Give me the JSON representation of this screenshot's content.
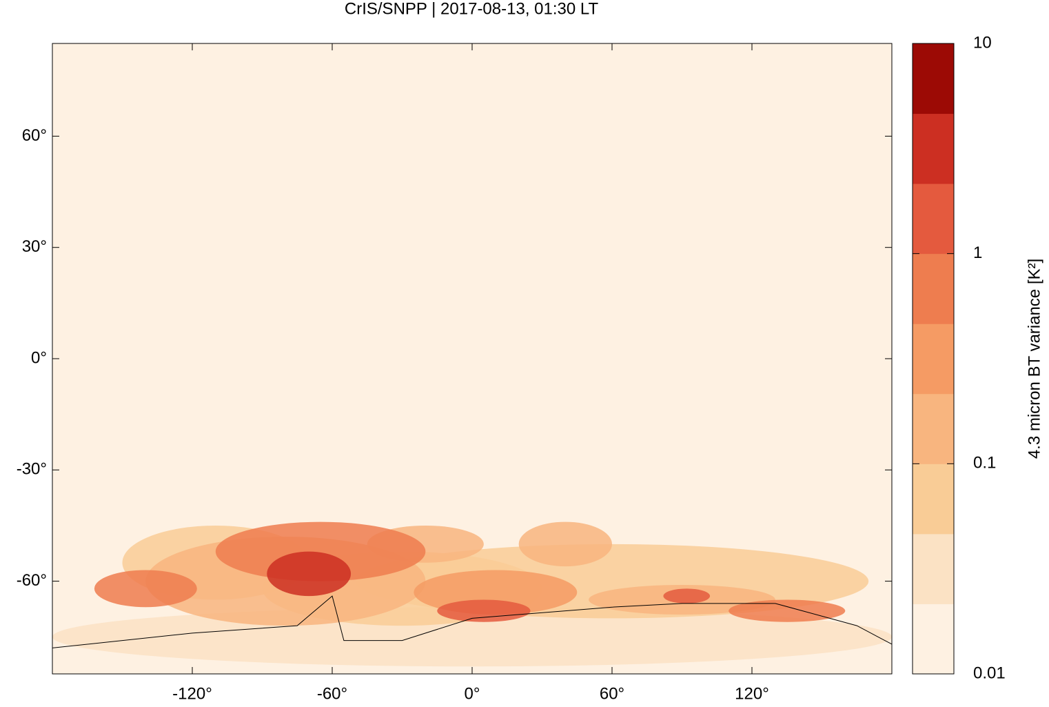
{
  "chart_data": {
    "type": "heatmap-map",
    "title": "CrIS/SNPP | 2017-08-13, 01:30 LT",
    "xlim": [
      -180,
      180
    ],
    "ylim": [
      -85,
      85
    ],
    "xticks": [
      {
        "value": -120,
        "label": "-120°"
      },
      {
        "value": -60,
        "label": "-60°"
      },
      {
        "value": 0,
        "label": "0°"
      },
      {
        "value": 60,
        "label": "60°"
      },
      {
        "value": 120,
        "label": "120°"
      }
    ],
    "yticks": [
      {
        "value": 60,
        "label": "60°"
      },
      {
        "value": 30,
        "label": "30°"
      },
      {
        "value": 0,
        "label": "0°"
      },
      {
        "value": -30,
        "label": "-30°"
      },
      {
        "value": -60,
        "label": "-60°"
      }
    ],
    "colorbar": {
      "label": "4.3 micron BT variance [K²]",
      "log_scale": true,
      "lim": [
        0.01,
        10
      ],
      "ticks": [
        0.01,
        0.1,
        1,
        10
      ],
      "colors": [
        "#fef1e2",
        "#fbe2c4",
        "#f9cc96",
        "#f8b57f",
        "#f59b64",
        "#ee7d4f",
        "#e45a3e",
        "#cc2f22",
        "#9c0a05"
      ]
    }
  }
}
